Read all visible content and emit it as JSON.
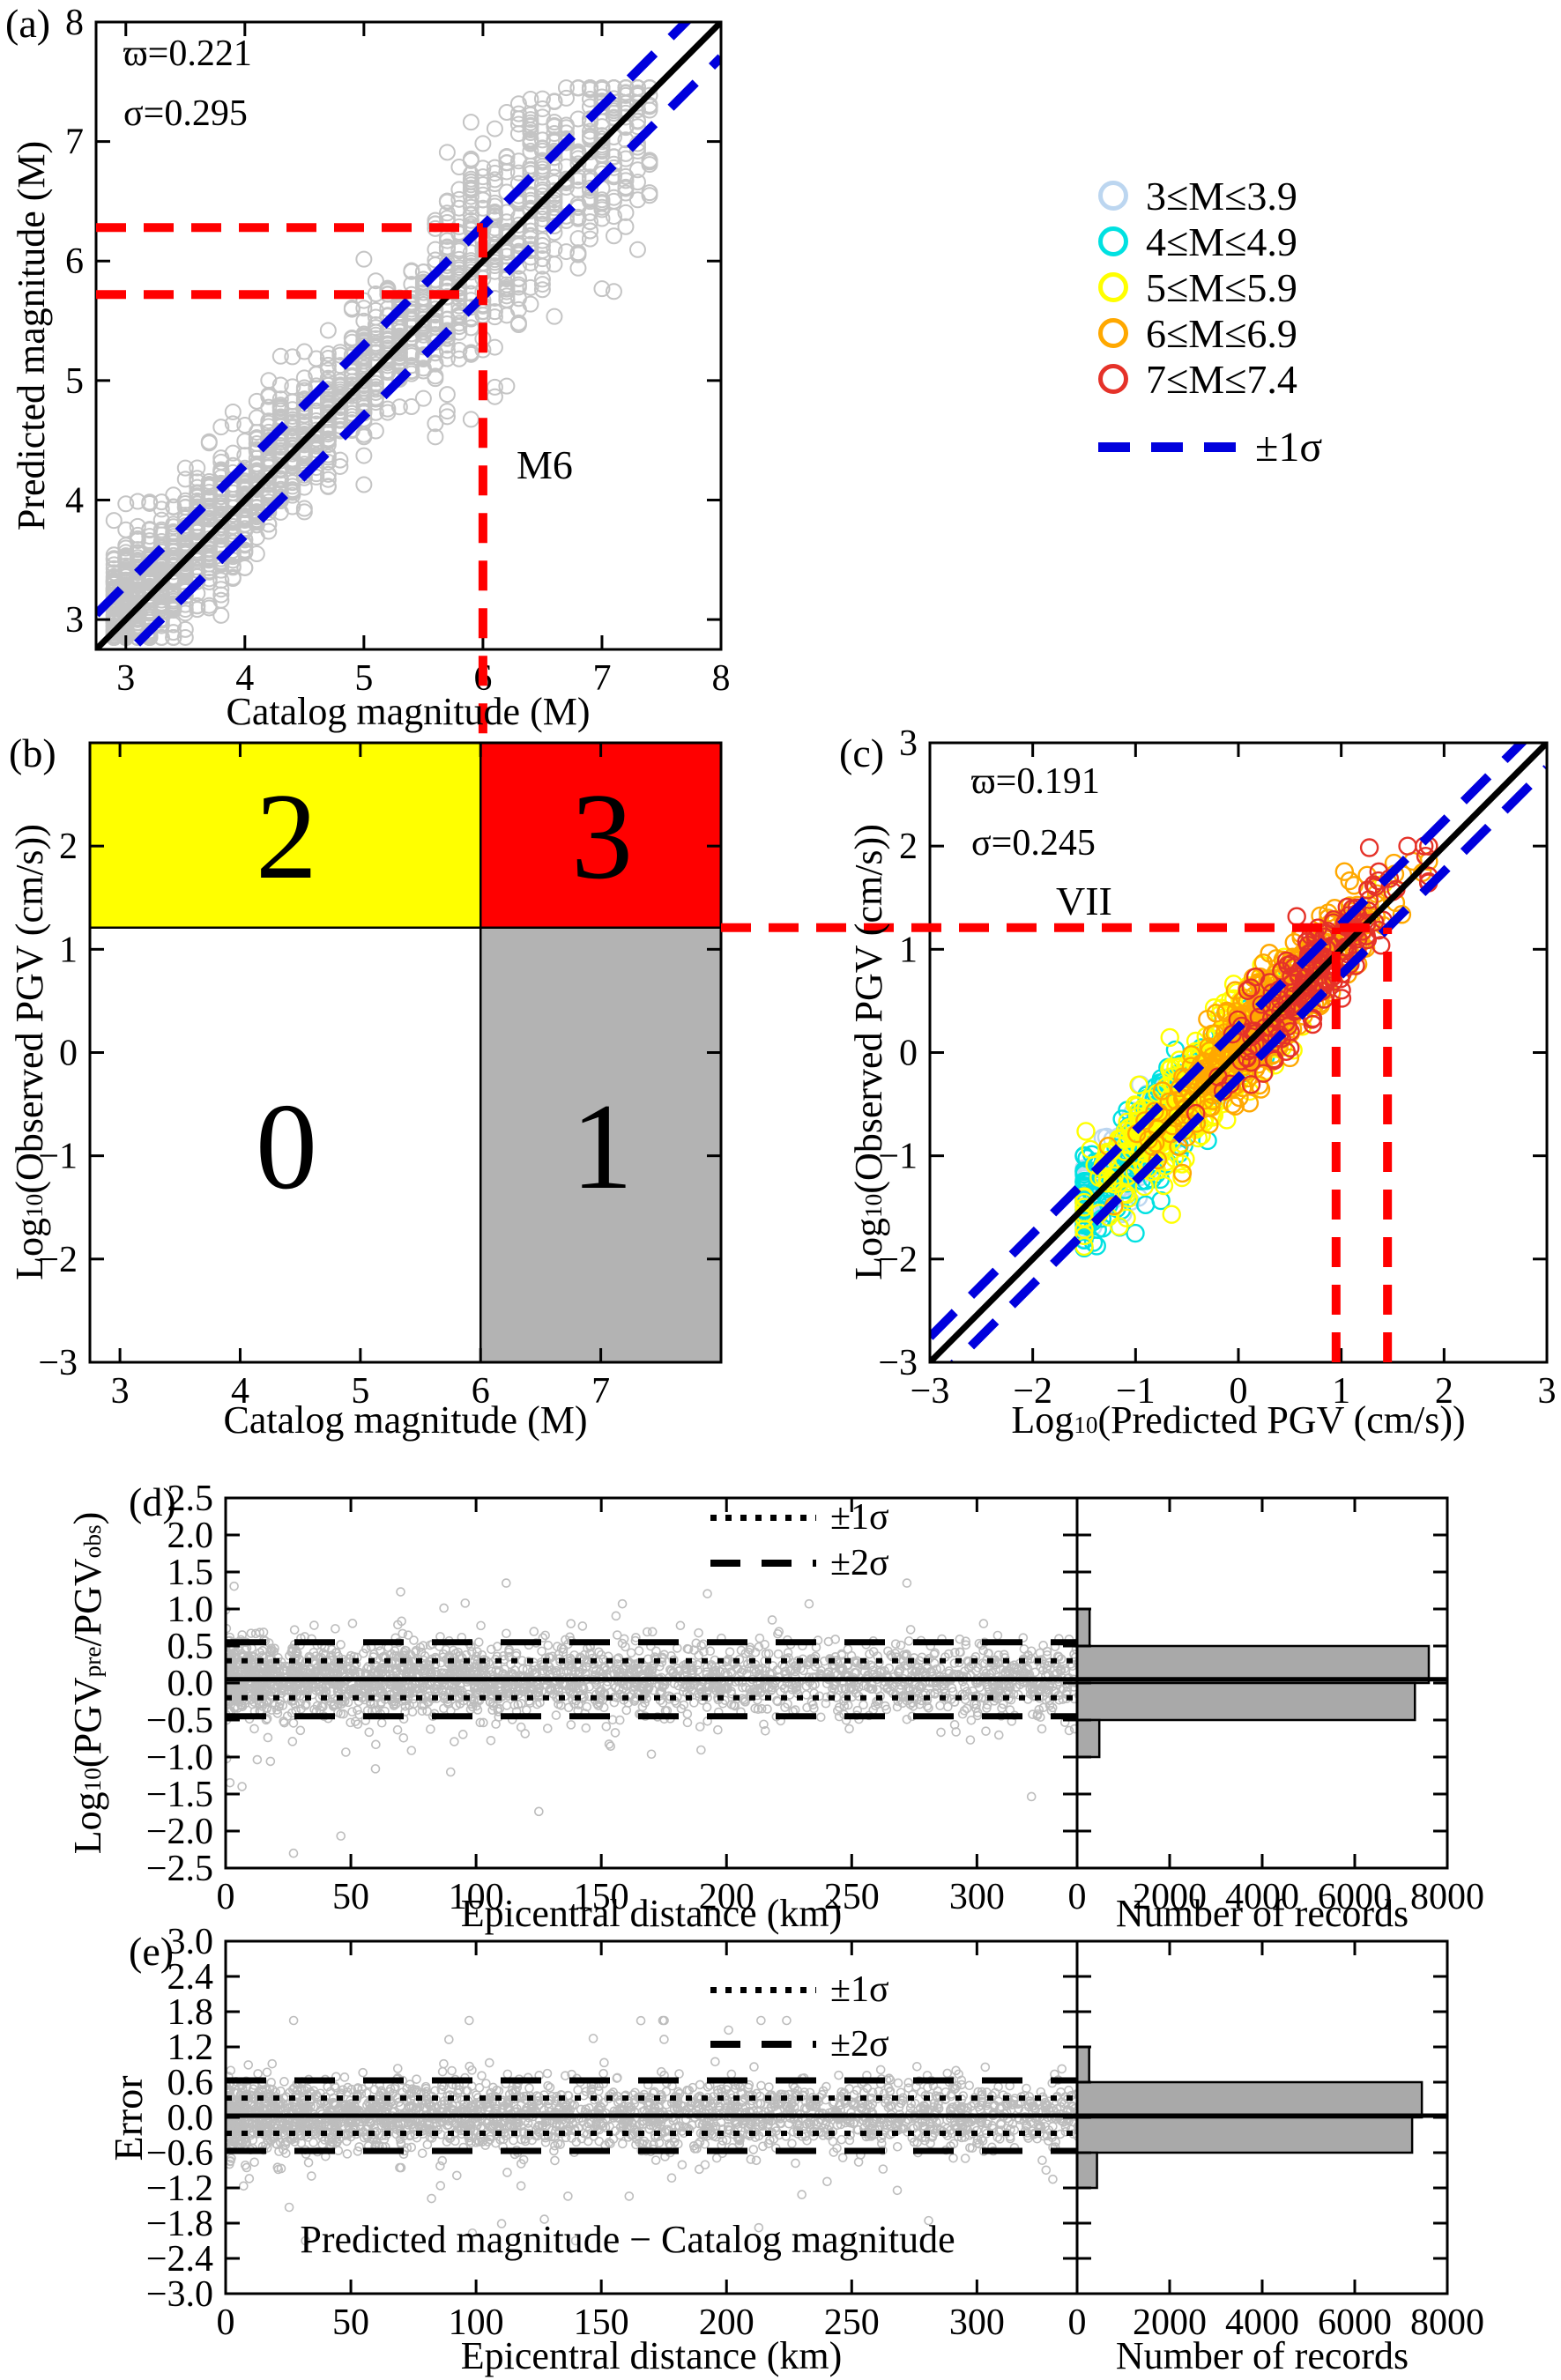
{
  "panels": {
    "a": {
      "letter": "(a)",
      "stat_line1": "ϖ=0.221",
      "stat_line2": "σ=0.295",
      "annotation": "M6",
      "xlabel": "Catalog magnitude (M)",
      "ylabel": "Predicted magnitude (M)"
    },
    "b": {
      "letter": "(b)",
      "xlabel": "Catalog magnitude (M)",
      "ylabel_prefix": "Log",
      "ylabel_sub": "10",
      "ylabel_rest": "(Observed PGV (cm/s))",
      "q0": "0",
      "q1": "1",
      "q2": "2",
      "q3": "3"
    },
    "c": {
      "letter": "(c)",
      "stat_line1": "ϖ=0.191",
      "stat_line2": "σ=0.245",
      "annotation": "VII",
      "xlabel_prefix": "Log",
      "xlabel_sub": "10",
      "xlabel_rest": "(Predicted PGV (cm/s))",
      "ylabel_prefix": "Log",
      "ylabel_sub": "10",
      "ylabel_rest": "(Observed PGV (cm/s))"
    },
    "d": {
      "letter": "(d)",
      "xlabel": "Epicentral distance (km)",
      "hist_xlabel": "Number of records",
      "legend_s1": "±1σ",
      "legend_s2": "±2σ",
      "ylabel_parts": [
        "Log",
        "10",
        "(PGV",
        "pre",
        "/PGV",
        "obs",
        ")"
      ]
    },
    "e": {
      "letter": "(e)",
      "xlabel": "Epicentral distance (km)",
      "hist_xlabel": "Number of records",
      "legend_s1": "±1σ",
      "legend_s2": "±2σ",
      "ylabel": "Error",
      "annotation": "Predicted magnitude − Catalog magnitude"
    }
  },
  "legend": {
    "classes": [
      {
        "label": "3≤M≤3.9",
        "color": "#bcd6f0"
      },
      {
        "label": "4≤M≤4.9",
        "color": "#00e1e1"
      },
      {
        "label": "5≤M≤5.9",
        "color": "#ffff00"
      },
      {
        "label": "6≤M≤6.9",
        "color": "#ffa800"
      },
      {
        "label": "7≤M≤7.4",
        "color": "#e53229"
      }
    ],
    "sigma_label": "±1σ",
    "sigma_color": "#0000dd"
  },
  "chart_data": [
    {
      "panel": "a",
      "type": "scatter",
      "title": "",
      "xlabel": "Catalog magnitude (M)",
      "ylabel": "Predicted magnitude (M)",
      "xlim": [
        2.75,
        8
      ],
      "ylim": [
        2.75,
        8
      ],
      "xticks": [
        3,
        4,
        5,
        6,
        7,
        8
      ],
      "xtick_labels": [
        "3",
        "4",
        "5",
        "6",
        "7",
        "8"
      ],
      "yticks": [
        3,
        4,
        5,
        6,
        7,
        8
      ],
      "ytick_labels": [
        "3",
        "4",
        "5",
        "6",
        "7",
        "8"
      ],
      "identity_line": true,
      "sigma": 0.295,
      "mean_abs_error": 0.221,
      "mean_bias": 0.03,
      "point_color": "#c4c4c4",
      "n_points": 2000,
      "gen": {
        "m_min": 2.9,
        "m_max": 7.45,
        "power": 1.7,
        "quantize": 0.1
      },
      "red_guides": {
        "vline_x": 6,
        "hline_upper_y": 6.28,
        "hline_lower_y": 5.72
      },
      "sigma_line_color": "#0000dd",
      "guide_color": "#ff0000"
    },
    {
      "panel": "b",
      "type": "quadrant",
      "xlabel": "Catalog magnitude (M)",
      "ylabel": "Log10(Observed PGV (cm/s))",
      "xlim": [
        2.75,
        8
      ],
      "ylim": [
        -3,
        3
      ],
      "xticks": [
        3,
        4,
        5,
        6,
        7
      ],
      "xtick_labels": [
        "3",
        "4",
        "5",
        "6",
        "7"
      ],
      "yticks": [
        2,
        1,
        0,
        -1,
        -2,
        -3
      ],
      "ytick_labels": [
        "2",
        "1",
        "0",
        "−1",
        "−2",
        "−3"
      ],
      "x_threshold": 6,
      "y_threshold": 1.21,
      "regions": [
        {
          "id": "q0",
          "label": "0",
          "color": "#ffffff",
          "x_range": "low",
          "y_range": "low"
        },
        {
          "id": "q1",
          "label": "1",
          "color": "#b3b3b3",
          "x_range": "high",
          "y_range": "low"
        },
        {
          "id": "q2",
          "label": "2",
          "color": "#ffff00",
          "x_range": "low",
          "y_range": "high"
        },
        {
          "id": "q3",
          "label": "3",
          "color": "#ff0000",
          "x_range": "high",
          "y_range": "high"
        }
      ]
    },
    {
      "panel": "c",
      "type": "scatter",
      "xlabel": "Log10(Predicted PGV (cm/s))",
      "ylabel": "Log10(Observed PGV (cm/s))",
      "xlim": [
        -3,
        3
      ],
      "ylim": [
        -3,
        3
      ],
      "xticks": [
        -3,
        -2,
        -1,
        0,
        1,
        2,
        3
      ],
      "xtick_labels": [
        "−3",
        "−2",
        "−1",
        "0",
        "1",
        "2",
        "3"
      ],
      "yticks": [
        3,
        2,
        1,
        0,
        -1,
        -2,
        -3
      ],
      "ytick_labels": [
        "3",
        "2",
        "1",
        "0",
        "−1",
        "−2",
        "−3"
      ],
      "identity_line": true,
      "sigma": 0.245,
      "mean_abs_error": 0.191,
      "mean_bias": 0.05,
      "classes": [
        {
          "label": "3≤M≤3.9",
          "color": "#bcd6f0",
          "count": 130,
          "center": -1.05,
          "spread": 0.33
        },
        {
          "label": "4≤M≤4.9",
          "color": "#00e1e1",
          "count": 290,
          "center": -0.8,
          "spread": 0.5
        },
        {
          "label": "5≤M≤5.9",
          "color": "#ffff00",
          "count": 430,
          "center": -0.35,
          "spread": 0.55
        },
        {
          "label": "6≤M≤6.9",
          "color": "#ffa800",
          "count": 470,
          "center": 0.3,
          "spread": 0.55
        },
        {
          "label": "7≤M≤7.4",
          "color": "#e53229",
          "count": 190,
          "center": 0.78,
          "spread": 0.45
        }
      ],
      "red_guides": {
        "hline_y": 1.21,
        "vlines_x": [
          0.95,
          1.45
        ]
      },
      "sigma_line_color": "#0000dd",
      "guide_color": "#ff0000"
    },
    {
      "panel": "d",
      "type": "scatter_histogram",
      "xlabel": "Epicentral distance (km)",
      "ylabel": "Log10(PGVpre/PGVobs)",
      "xlim": [
        0,
        340
      ],
      "ylim": [
        -2.5,
        2.5
      ],
      "xticks": [
        0,
        50,
        100,
        150,
        200,
        250,
        300
      ],
      "xtick_labels": [
        "0",
        "50",
        "100",
        "150",
        "200",
        "250",
        "300"
      ],
      "yticks": [
        2.5,
        2,
        1.5,
        1,
        0.5,
        0,
        -0.5,
        -1,
        -1.5,
        -2,
        -2.5
      ],
      "ytick_labels": [
        "2.5",
        "2.0",
        "1.5",
        "1.0",
        "0.5",
        "0.0",
        "−0.5",
        "−1.0",
        "−1.5",
        "−2.0",
        "−2.5"
      ],
      "point_color": "#bdbdbd",
      "n_points": 2600,
      "gen": {
        "x_power": 1.4,
        "mean": 0.05,
        "sigma": 0.245,
        "outlier_prob": 0.035,
        "outlier_scale": 2.8,
        "clamp": [
          -2.3,
          1.35
        ]
      },
      "lines": {
        "mean": 0.05,
        "sigma1": [
          0.3,
          -0.2
        ],
        "sigma2": [
          0.55,
          -0.45
        ]
      },
      "hist": {
        "xlabel": "Number of records",
        "xlim": [
          0,
          8000
        ],
        "xticks": [
          0,
          2000,
          4000,
          6000,
          8000
        ],
        "xtick_labels": [
          "0",
          "2000",
          "4000",
          "6000",
          "8000"
        ],
        "bins": [
          {
            "from": 0.5,
            "to": 1.0,
            "count": 270
          },
          {
            "from": 0.0,
            "to": 0.5,
            "count": 7600
          },
          {
            "from": -0.5,
            "to": 0.0,
            "count": 7300
          },
          {
            "from": -1.0,
            "to": -0.5,
            "count": 480
          }
        ]
      }
    },
    {
      "panel": "e",
      "type": "scatter_histogram",
      "xlabel": "Epicentral distance (km)",
      "ylabel": "Error",
      "annotation": "Predicted magnitude − Catalog magnitude",
      "xlim": [
        0,
        340
      ],
      "ylim": [
        -3,
        3
      ],
      "xticks": [
        0,
        50,
        100,
        150,
        200,
        250,
        300
      ],
      "xtick_labels": [
        "0",
        "50",
        "100",
        "150",
        "200",
        "250",
        "300"
      ],
      "yticks": [
        3,
        2.4,
        1.8,
        1.2,
        0.6,
        0,
        -0.6,
        -1.2,
        -1.8,
        -2.4,
        -3
      ],
      "ytick_labels": [
        "3.0",
        "2.4",
        "1.8",
        "1.2",
        "0.6",
        "0.0",
        "−0.6",
        "−1.2",
        "−1.8",
        "−2.4",
        "−3.0"
      ],
      "point_color": "#bdbdbd",
      "n_points": 2600,
      "gen": {
        "x_power": 1.4,
        "mean": 0.03,
        "sigma": 0.3,
        "outlier_prob": 0.035,
        "outlier_scale": 2.8,
        "clamp": [
          -2.1,
          1.65
        ]
      },
      "lines": {
        "mean": 0.03,
        "sigma1": [
          0.33,
          -0.27
        ],
        "sigma2": [
          0.63,
          -0.57
        ]
      },
      "hist": {
        "xlabel": "Number of records",
        "xlim": [
          0,
          8000
        ],
        "xticks": [
          0,
          2000,
          4000,
          6000,
          8000
        ],
        "xtick_labels": [
          "0",
          "2000",
          "4000",
          "6000",
          "8000"
        ],
        "bins": [
          {
            "from": 0.6,
            "to": 1.2,
            "count": 260
          },
          {
            "from": 0.0,
            "to": 0.6,
            "count": 7450
          },
          {
            "from": -0.6,
            "to": 0.0,
            "count": 7240
          },
          {
            "from": -1.2,
            "to": -0.6,
            "count": 430
          }
        ]
      }
    }
  ]
}
